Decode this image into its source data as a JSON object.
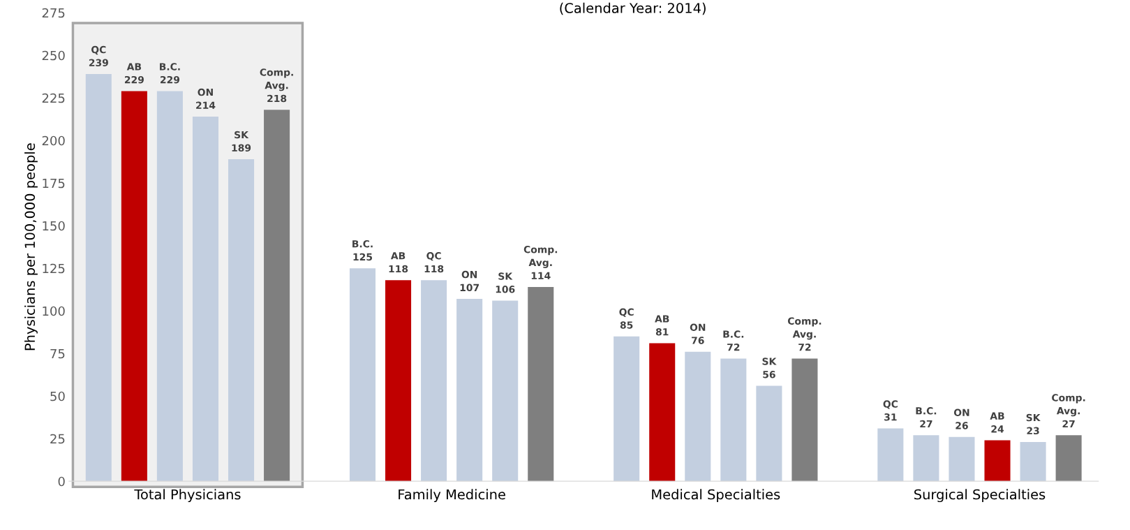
{
  "chart_data": {
    "type": "bar",
    "subtitle": "(Calendar Year: 2014)",
    "ylabel": "Physicians per 100,000 people",
    "categories": [
      "Total Physicians",
      "Family Medicine",
      "Medical Specialties",
      "Surgical Specialties"
    ],
    "series": [
      {
        "colors": [
          "#c3cfe0",
          "#c3cfe0",
          "#c3cfe0",
          "#c3cfe0"
        ],
        "values": [
          239,
          125,
          85,
          31
        ],
        "value_labels": [
          "QC\n239",
          "B.C.\n125",
          "QC\n85",
          "QC\n31"
        ]
      },
      {
        "colors": [
          "#c00000",
          "#c00000",
          "#c00000",
          "#c3cfe0"
        ],
        "values": [
          229,
          118,
          81,
          27
        ],
        "value_labels": [
          "AB\n229",
          "AB\n118",
          "AB\n81",
          "B.C.\n27"
        ]
      },
      {
        "colors": [
          "#c3cfe0",
          "#c3cfe0",
          "#c3cfe0",
          "#c3cfe0"
        ],
        "values": [
          229,
          118,
          76,
          26
        ],
        "value_labels": [
          "B.C.\n229",
          "QC\n118",
          "ON\n76",
          "ON\n26"
        ]
      },
      {
        "colors": [
          "#c3cfe0",
          "#c3cfe0",
          "#c3cfe0",
          "#c00000"
        ],
        "values": [
          214,
          107,
          72,
          24
        ],
        "value_labels": [
          "ON\n214",
          "ON\n107",
          "B.C.\n72",
          "AB\n24"
        ]
      },
      {
        "colors": [
          "#c3cfe0",
          "#c3cfe0",
          "#c3cfe0",
          "#c3cfe0"
        ],
        "values": [
          189,
          106,
          56,
          23
        ],
        "value_labels": [
          "SK\n189",
          "SK\n106",
          "SK\n56",
          "SK\n23"
        ]
      },
      {
        "colors": [
          "#7f7f7f",
          "#7f7f7f",
          "#7f7f7f",
          "#7f7f7f"
        ],
        "values": [
          218,
          114,
          72,
          27
        ],
        "value_labels": [
          "Comp.\nAvg.\n218",
          "Comp.\nAvg.\n114",
          "Comp.\nAvg.\n72",
          "Comp.\nAvg.\n27"
        ]
      }
    ],
    "ylim": [
      0,
      275
    ],
    "yticks": [
      0,
      25,
      50,
      75,
      100,
      125,
      150,
      175,
      200,
      225,
      250,
      275
    ],
    "bands": [
      {
        "axis": "x",
        "from": "Total Physicians",
        "to": "Total Physicians",
        "color": "#f0f0f0"
      }
    ],
    "grid": false,
    "legend": false
  }
}
